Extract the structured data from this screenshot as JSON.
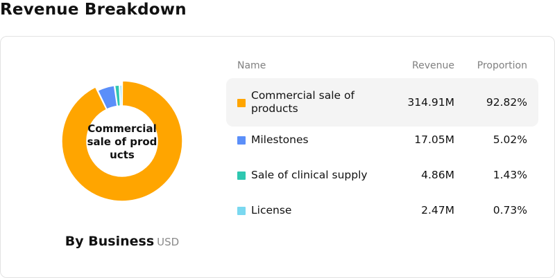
{
  "header": {
    "title": "Revenue Breakdown"
  },
  "chart": {
    "center_label": "Commercial sale of products",
    "caption": "By Business",
    "unit": "USD"
  },
  "table": {
    "headers": {
      "name": "Name",
      "revenue": "Revenue",
      "proportion": "Proportion"
    },
    "rows": [
      {
        "name": "Commercial sale of products",
        "revenue": "314.91M",
        "proportion": "92.82%",
        "color": "#FFA500",
        "highlighted": true
      },
      {
        "name": "Milestones",
        "revenue": "17.05M",
        "proportion": "5.02%",
        "color": "#5B8FF9",
        "highlighted": false
      },
      {
        "name": "Sale of clinical supply",
        "revenue": "4.86M",
        "proportion": "1.43%",
        "color": "#2EC7B0",
        "highlighted": false
      },
      {
        "name": "License",
        "revenue": "2.47M",
        "proportion": "0.73%",
        "color": "#7AD8F0",
        "highlighted": false
      }
    ]
  },
  "chart_data": {
    "type": "pie",
    "categories": [
      "Commercial sale of products",
      "Milestones",
      "Sale of clinical supply",
      "License"
    ],
    "values": [
      314.91,
      17.05,
      4.86,
      2.47
    ],
    "percentages": [
      92.82,
      5.02,
      1.43,
      0.73
    ],
    "colors": [
      "#FFA500",
      "#5B8FF9",
      "#2EC7B0",
      "#7AD8F0"
    ],
    "donut": true,
    "highlighted_slice": "Commercial sale of products",
    "title": "By Business",
    "unit": "USD"
  }
}
